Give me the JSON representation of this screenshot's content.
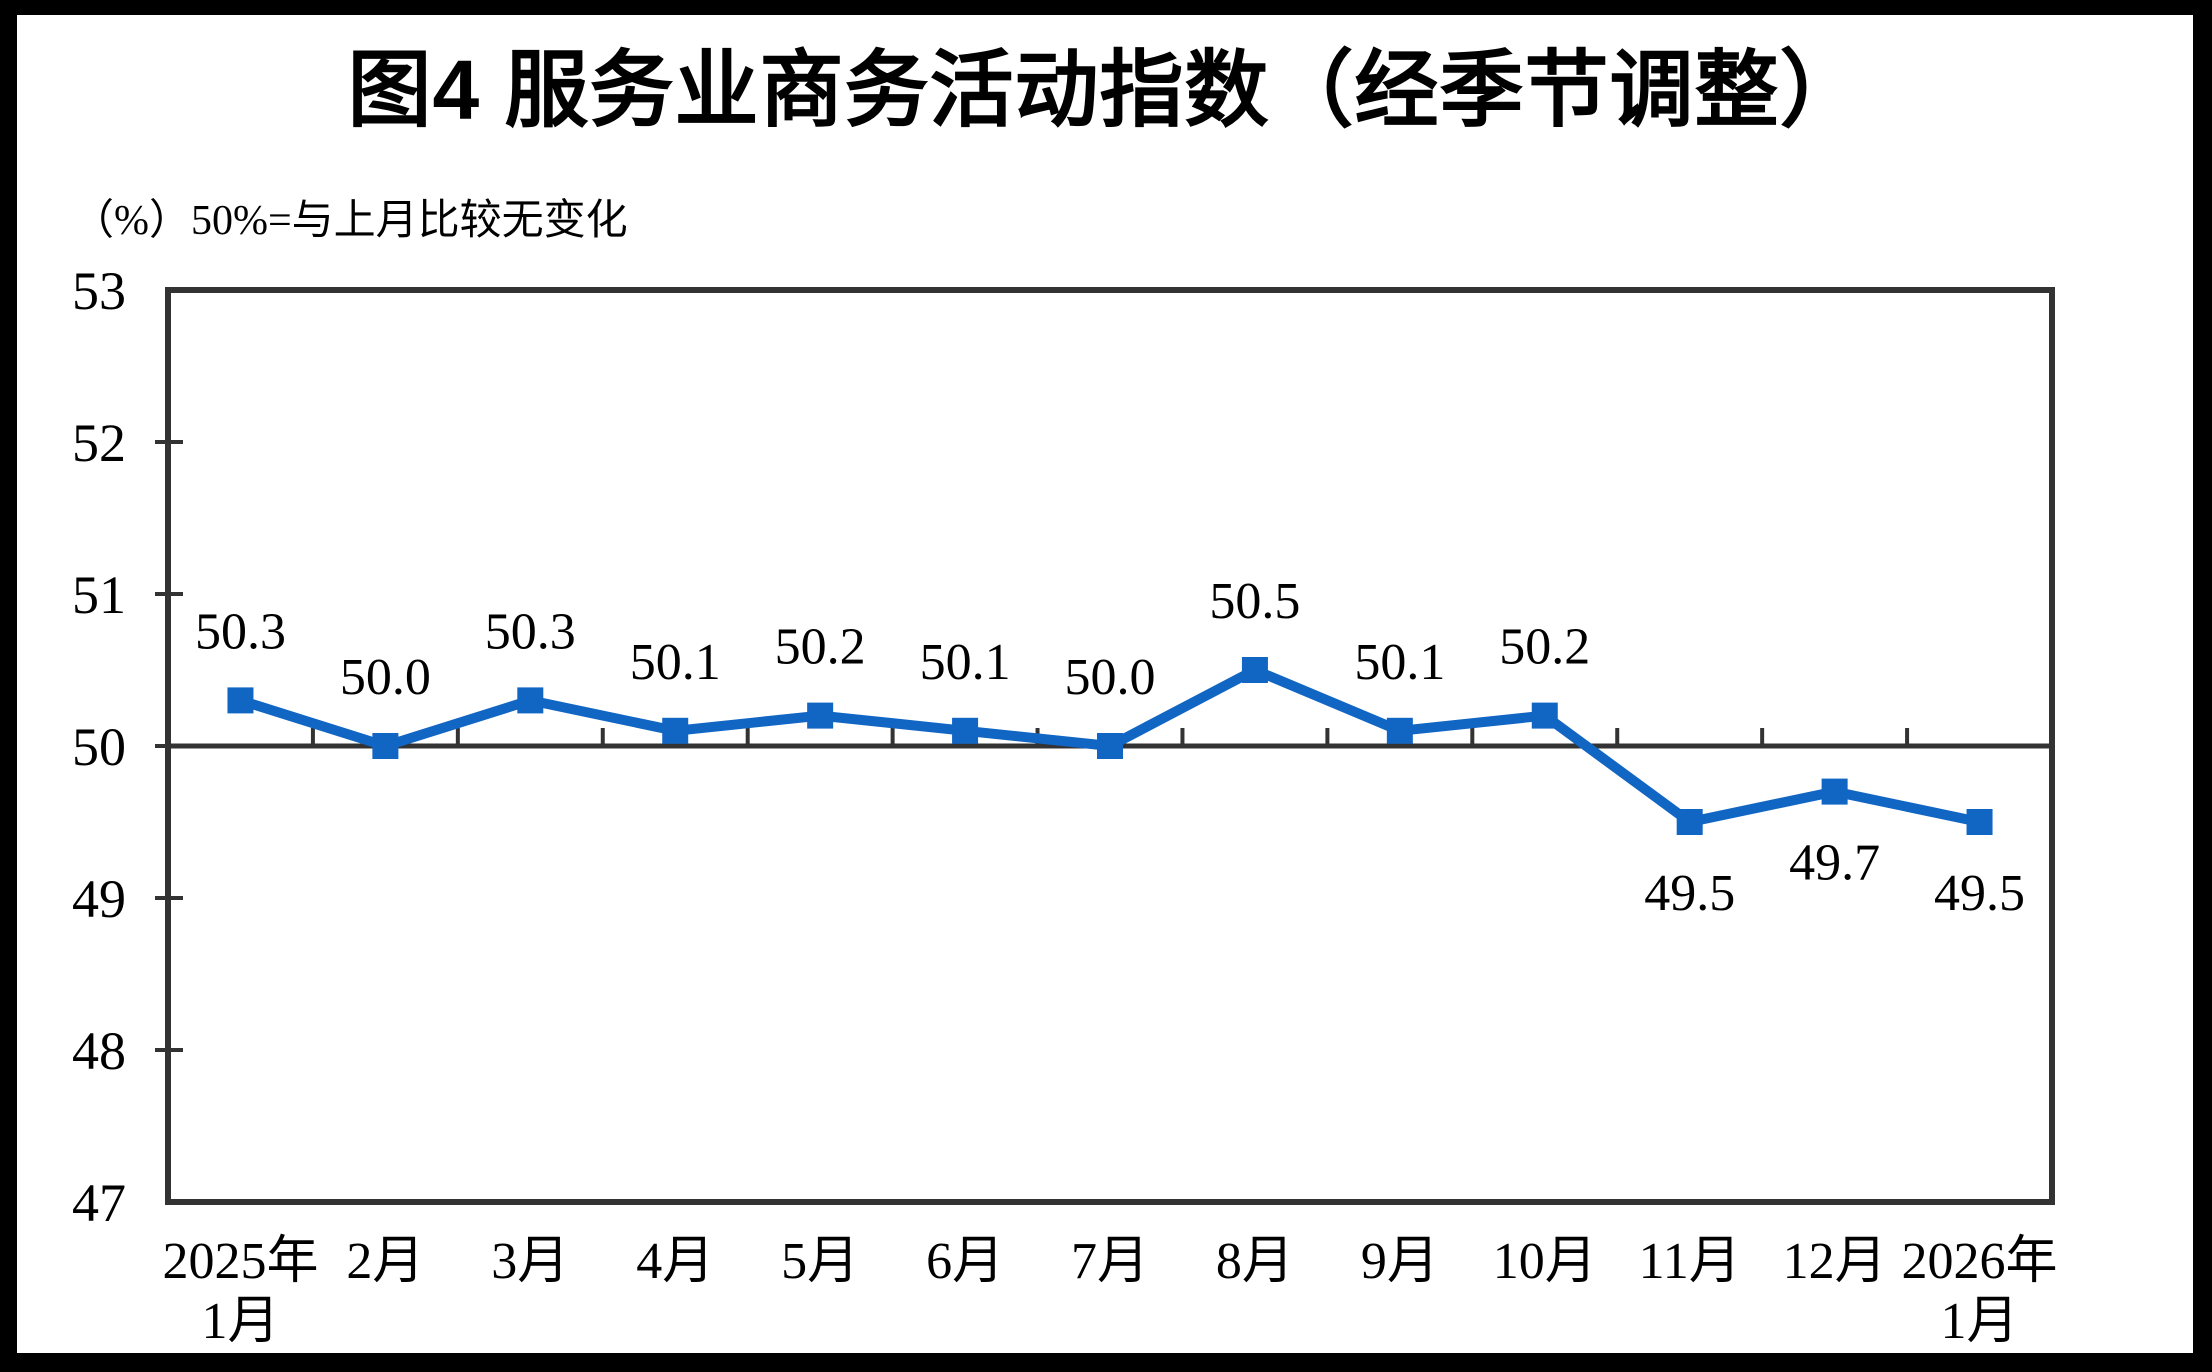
{
  "chart_data": {
    "type": "line",
    "title": "图4  服务业商务活动指数（经季节调整）",
    "unit_note": "（%）50%=与上月比较无变化",
    "categories": [
      "2025年\n1月",
      "2月",
      "3月",
      "4月",
      "5月",
      "6月",
      "7月",
      "8月",
      "9月",
      "10月",
      "11月",
      "12月",
      "2026年\n1月"
    ],
    "values": [
      50.3,
      50.0,
      50.3,
      50.1,
      50.2,
      50.1,
      50.0,
      50.5,
      50.1,
      50.2,
      49.5,
      49.7,
      49.5
    ],
    "data_labels": [
      "50.3",
      "50.0",
      "50.3",
      "50.1",
      "50.2",
      "50.1",
      "50.0",
      "50.5",
      "50.1",
      "50.2",
      "49.5",
      "49.7",
      "49.5"
    ],
    "ylim": [
      47,
      53
    ],
    "ytick_step": 1,
    "yticks": [
      47,
      48,
      49,
      50,
      51,
      52,
      53
    ],
    "baseline": 50,
    "grid": false,
    "legend": false,
    "colors": {
      "series": "#1166C4",
      "axis": "#333333",
      "labels": "#000000",
      "background": "#ffffff",
      "frame": "#000000"
    }
  }
}
